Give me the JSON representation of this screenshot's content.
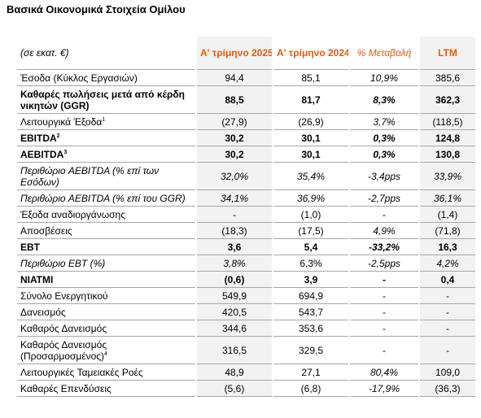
{
  "title": "Βασικά Οικονομικά Στοιχεία Ομίλου",
  "header": {
    "unit": "(σε εκατ. €)",
    "col1": "Α' τρίμηνο 2025",
    "col2": "Α' τρίμηνο 2024",
    "col3": "% Μεταβολή",
    "col4": "LTM"
  },
  "accent_color": "#e8580c",
  "rows": [
    {
      "label": "Έσοδα (Κύκλος Εργασιών)",
      "sup": "",
      "v1": "94,4",
      "v2": "85,1",
      "v3": "10,9%",
      "v4": "385,6"
    },
    {
      "label": "Καθαρές πωλήσεις μετά από κέρδη νικητών (GGR)",
      "sup": "",
      "v1": "88,5",
      "v2": "81,7",
      "v3": "8,3%",
      "v4": "362,3"
    },
    {
      "label": "Λειτουργικά Έξοδα",
      "sup": "1",
      "v1": "(27,9)",
      "v2": "(26,9)",
      "v3": "3,7%",
      "v4": "(118,5)"
    },
    {
      "label": "EBITDA",
      "sup": "2",
      "v1": "30,2",
      "v2": "30,1",
      "v3": "0,3%",
      "v4": "124,8"
    },
    {
      "label": "AEBITDA",
      "sup": "3",
      "v1": "30,2",
      "v2": "30,1",
      "v3": "0,3%",
      "v4": "130,8"
    },
    {
      "label": "Περιθώριο AEBITDA (% επί των Εσόδων)",
      "sup": "",
      "v1": "32,0%",
      "v2": "35,4%",
      "v3": "-3,4pps",
      "v4": "33,9%"
    },
    {
      "label": "Περιθώριο AEBITDA (% επί του GGR)",
      "sup": "",
      "v1": "34,1%",
      "v2": "36,9%",
      "v3": "-2,7pps",
      "v4": "36,1%"
    },
    {
      "label": "Έξοδα αναδιοργάνωσης",
      "sup": "",
      "v1": "-",
      "v2": "(1,0)",
      "v3": "-",
      "v4": "(1,4)"
    },
    {
      "label": "Αποσβέσεις",
      "sup": "",
      "v1": "(18,3)",
      "v2": "(17,5)",
      "v3": "4,9%",
      "v4": "(71,8)"
    },
    {
      "label": "EBT",
      "sup": "",
      "v1": "3,6",
      "v2": "5,4",
      "v3": "-33,2%",
      "v4": "16,3"
    },
    {
      "label": "Περιθώριο EBT (%)",
      "sup": "",
      "v1": "3,8%",
      "v2": "6,3%",
      "v3": "-2,5pps",
      "v4": "4,2%"
    },
    {
      "label": "ΝΙΑΤΜΙ",
      "sup": "",
      "v1": "(0,6)",
      "v2": "3,9",
      "v3": "-",
      "v4": "0,4"
    },
    {
      "label": "Σύνολο Ενεργητικού",
      "sup": "",
      "v1": "549,9",
      "v2": "694,9",
      "v3": "-",
      "v4": "-"
    },
    {
      "label": "Δανεισμός",
      "sup": "",
      "v1": "420,5",
      "v2": "543,7",
      "v3": "-",
      "v4": "-"
    },
    {
      "label": "Καθαρός Δανεισμός",
      "sup": "",
      "v1": "344,6",
      "v2": "353,6",
      "v3": "-",
      "v4": "-"
    },
    {
      "label": "Καθαρός Δανεισμός (Προσαρμοσμένος)",
      "sup": "4",
      "v1": "316,5",
      "v2": "329,5",
      "v3": "-",
      "v4": "-"
    },
    {
      "label": "Λειτουργικές Ταμειακές Ροές",
      "sup": "",
      "v1": "48,9",
      "v2": "27,1",
      "v3": "80,4%",
      "v4": "109,0"
    },
    {
      "label": "Καθαρές Επενδύσεις",
      "sup": "",
      "v1": "(5,6)",
      "v2": "(6,8)",
      "v3": "-17,9%",
      "v4": "(36,3)"
    }
  ]
}
